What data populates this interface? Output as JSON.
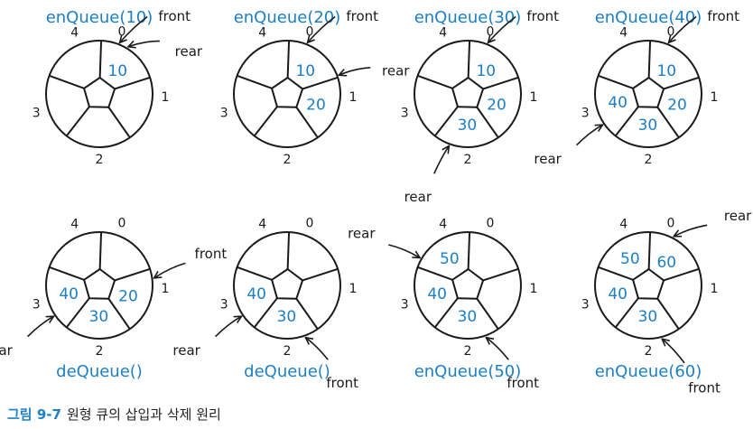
{
  "colors": {
    "value": "#1d7fc4",
    "title": "#1d7fc4",
    "line": "#1a1a1a",
    "caption_label": "#1d7fc4",
    "caption_text": "#222222"
  },
  "labels": {
    "front": "front",
    "rear": "rear"
  },
  "slot_indices": [
    "0",
    "1",
    "2",
    "3",
    "4"
  ],
  "panels": [
    {
      "title": "enQueue(10)",
      "values": [
        "10",
        "",
        "",
        "",
        ""
      ],
      "front": 0,
      "rear": 0
    },
    {
      "title": "enQueue(20)",
      "values": [
        "10",
        "20",
        "",
        "",
        ""
      ],
      "front": 0,
      "rear": 1
    },
    {
      "title": "enQueue(30)",
      "values": [
        "10",
        "20",
        "30",
        "",
        ""
      ],
      "front": 0,
      "rear": 2
    },
    {
      "title": "enQueue(40)",
      "values": [
        "10",
        "20",
        "30",
        "40",
        ""
      ],
      "front": 0,
      "rear": 3
    },
    {
      "title": "deQueue()",
      "values": [
        "",
        "20",
        "30",
        "40",
        ""
      ],
      "front": 1,
      "rear": 3
    },
    {
      "title": "deQueue()",
      "values": [
        "",
        "",
        "30",
        "40",
        ""
      ],
      "front": 2,
      "rear": 3
    },
    {
      "title": "enQueue(50)",
      "values": [
        "",
        "",
        "30",
        "40",
        "50"
      ],
      "front": 2,
      "rear": 4
    },
    {
      "title": "enQueue(60)",
      "values": [
        "60",
        "",
        "30",
        "40",
        "50"
      ],
      "front": 2,
      "rear": 0
    }
  ],
  "caption": {
    "label": "그림 9-7",
    "text": "원형 큐의 삽입과 삭제 원리"
  }
}
